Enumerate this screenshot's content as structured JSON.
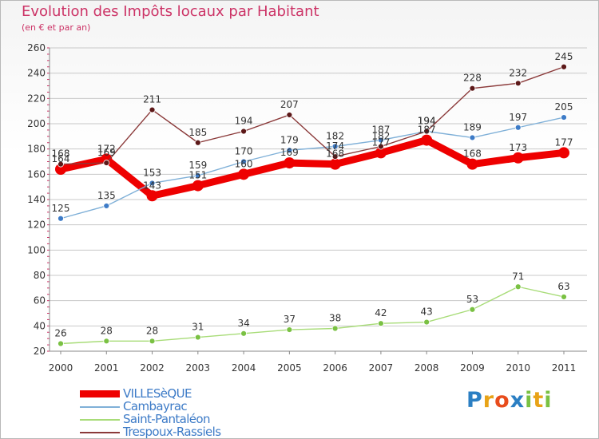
{
  "title": "Evolution des Impôts locaux par Habitant",
  "subtitle": "(en € et par an)",
  "logo": {
    "text": "Proxiti"
  },
  "colors": {
    "title": "#cc3366",
    "axis_text": "#333333",
    "grid": "#c8c8c8",
    "legend_text": "#3d7bc7"
  },
  "chart_data": {
    "type": "line",
    "x": [
      "2000",
      "2001",
      "2002",
      "2003",
      "2004",
      "2005",
      "2006",
      "2007",
      "2008",
      "2009",
      "2010",
      "2011"
    ],
    "ylim": [
      20,
      260
    ],
    "yticks": [
      20,
      40,
      60,
      80,
      100,
      120,
      140,
      160,
      180,
      200,
      220,
      240,
      260
    ],
    "grid": true,
    "legend_position": "bottom-left",
    "series": [
      {
        "name": "VILLESèQUE",
        "color": "#ee0000",
        "marker_color": "#ee0000",
        "thick": true,
        "values": [
          164,
          172,
          143,
          151,
          160,
          169,
          168,
          177,
          187,
          168,
          173,
          177
        ]
      },
      {
        "name": "Cambayrac",
        "color": "#7fb0d8",
        "marker_color": "#3d7bc7",
        "thick": false,
        "values": [
          125,
          135,
          153,
          159,
          170,
          179,
          182,
          187,
          194,
          189,
          197,
          205
        ]
      },
      {
        "name": "Saint-Pantaléon",
        "color": "#a8dc78",
        "marker_color": "#7ac143",
        "thick": false,
        "values": [
          26,
          28,
          28,
          31,
          34,
          37,
          38,
          42,
          43,
          53,
          71,
          63
        ]
      },
      {
        "name": "Trespoux-Rassiels",
        "color": "#8b3a3a",
        "marker_color": "#5c1818",
        "thick": false,
        "values": [
          168,
          169,
          211,
          185,
          194,
          207,
          174,
          182,
          194,
          228,
          232,
          245
        ]
      }
    ]
  }
}
